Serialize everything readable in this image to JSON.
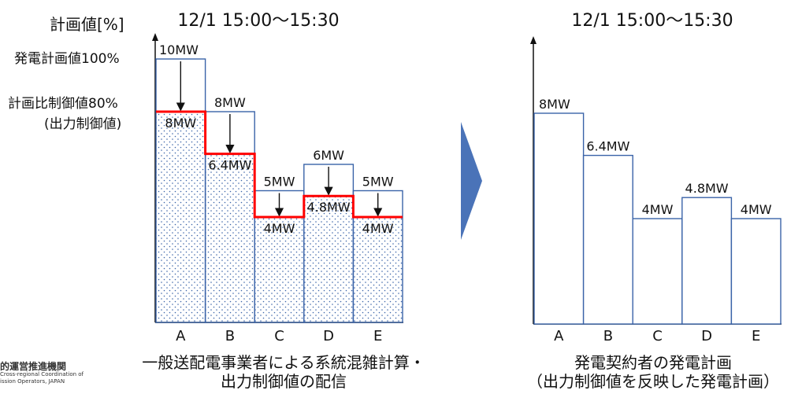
{
  "left": {
    "title": "12/1 15:00～15:30",
    "y_axis_label": "計画値[%]",
    "label_100": "発電計画値100%",
    "label_80_line1": "計画比制御値80%",
    "label_80_line2": "(出力制御値)",
    "caption_line1": "一般送配電事業者による系統混雑計算・",
    "caption_line2": "出力制御値の配信"
  },
  "right": {
    "title": "12/1 15:00～15:30",
    "caption_line1": "発電契約者の発電計画",
    "caption_line2": "（出力制御値を反映した発電計画）"
  },
  "logo": {
    "line1": "的運営推進機関",
    "line2": "Cross-regional Coordination of",
    "line3": "ission Operators, JAPAN"
  },
  "colors": {
    "control_line": "#ff0000",
    "bar_outline": "#3a63a8",
    "dot_fill": "#3a63a8",
    "arrow_fill": "#3a63a8"
  },
  "chart_data": [
    {
      "type": "bar",
      "categories": [
        "A",
        "B",
        "C",
        "D",
        "E"
      ],
      "series": [
        {
          "name": "",
          "values": [
            10,
            8,
            5,
            6,
            5
          ],
          "labels": [
            "10MW",
            "8MW",
            "5MW",
            "6MW",
            "5MW"
          ]
        },
        {
          "name": "",
          "values": [
            8,
            6.4,
            4,
            4.8,
            4
          ],
          "labels": [
            "8MW",
            "6.4MW",
            "4MW",
            "4.8MW",
            "4MW"
          ]
        }
      ]
    },
    {
      "type": "bar",
      "categories": [
        "A",
        "B",
        "C",
        "D",
        "E"
      ],
      "series": [
        {
          "name": "",
          "values": [
            8,
            6.4,
            4,
            4.8,
            4
          ],
          "labels": [
            "8MW",
            "6.4MW",
            "4MW",
            "4.8MW",
            "4MW"
          ]
        }
      ]
    }
  ]
}
